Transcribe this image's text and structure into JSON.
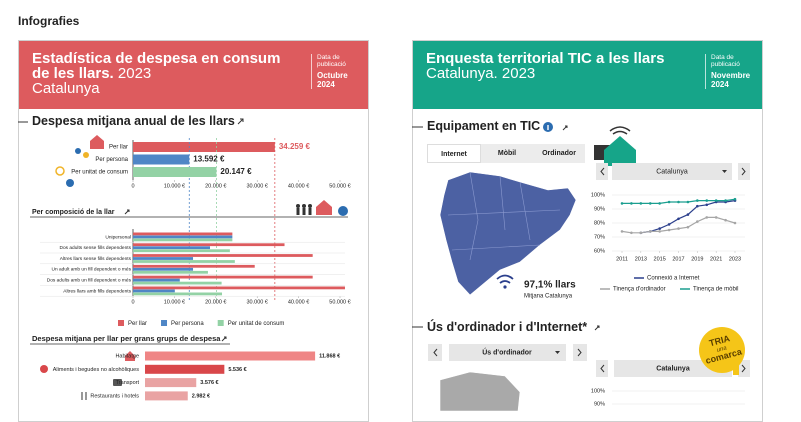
{
  "header": {
    "title": "Infografies"
  },
  "cards": [
    {
      "title": "Estadística de despesa en consum de les llars.",
      "year": "2023",
      "region": "Catalunya",
      "pub_label": "Data de publicació",
      "pub_date": "Octubre 2024",
      "section_title": "Despesa mitjana anual de les llars",
      "annual": {
        "type": "bar",
        "orientation": "horizontal",
        "categories": [
          "Per llar",
          "Per persona",
          "Per unitat de consum"
        ],
        "values": [
          34259,
          13592,
          20147
        ],
        "value_labels": [
          "34.259 €",
          "13.592 €",
          "20.147 €"
        ],
        "colors": [
          "#dd5b5e",
          "#4f86c6",
          "#93d2a5"
        ],
        "xlim": [
          0,
          50000
        ],
        "xticks": [
          0,
          {
            "value": 10000,
            "label": "10.000 €"
          },
          {
            "value": 20000,
            "label": "20.000 €"
          },
          {
            "value": 30000,
            "label": "30.000 €"
          },
          {
            "value": 40000,
            "label": "40.000 €"
          },
          {
            "value": 50000,
            "label": "50.000 €"
          }
        ]
      },
      "composition": {
        "type": "bar",
        "orientation": "horizontal",
        "title": "Per composició de la llar",
        "categories": [
          "Unipersonal",
          "Dos adults sense fills dependents",
          "Altres llars sense fills dependents",
          "Un adult amb un fill dependent o més",
          "Dos adults amb un fill dependent o més",
          "Altres llars amb fills dependents"
        ],
        "series": [
          {
            "name": "Per llar",
            "color": "#dd5b5e",
            "values": [
              24000,
              36600,
              43400,
              29400,
              43400,
              51200
            ]
          },
          {
            "name": "Per persona",
            "color": "#4f86c6",
            "values": [
              24000,
              18600,
              14500,
              14500,
              11300,
              10100
            ]
          },
          {
            "name": "Per unitat de consum",
            "color": "#93d2a5",
            "values": [
              24000,
              23400,
              24600,
              18100,
              21400,
              21500
            ]
          }
        ],
        "xlim": [
          0,
          50000
        ],
        "xticks": [
          0,
          {
            "value": 10000,
            "label": "10.000 €"
          },
          {
            "value": 20000,
            "label": "20.000 €"
          },
          {
            "value": 30000,
            "label": "30.000 €"
          },
          {
            "value": 40000,
            "label": "40.000 €"
          },
          {
            "value": 50000,
            "label": "50.000 €"
          }
        ]
      },
      "groups": {
        "type": "bar",
        "orientation": "horizontal",
        "title": "Despesa mitjana per llar per grans grups de despesa",
        "categories": [
          "Habitatge",
          "Aliments i begudes no alcohòliques",
          "Transport",
          "Restaurants i hotels"
        ],
        "values": [
          11868,
          5536,
          3576,
          2982
        ],
        "value_labels": [
          "11.868 €",
          "5.536 €",
          "3.576 €",
          "2.982 €"
        ],
        "colors": [
          "#ef8585",
          "#d9474a",
          "#e9a3a3",
          "#e9a3a3"
        ],
        "xlim": [
          0,
          12000
        ]
      }
    },
    {
      "title": "Enquesta territorial TIC a les llars",
      "subtitle": "Catalunya. 2023",
      "pub_label": "Data de publicació",
      "pub_date": "Novembre 2024",
      "section_title": "Equipament en TIC",
      "tabs": [
        "Internet",
        "Mòbil",
        "Ordinador"
      ],
      "map_value": "97,1% llars",
      "map_caption": "Mitjana Catalunya",
      "select": "Catalunya",
      "trend": {
        "type": "line",
        "x": [
          2011,
          2012,
          2013,
          2014,
          2015,
          2016,
          2017,
          2018,
          2019,
          2020,
          2021,
          2022,
          2023
        ],
        "xlim": [
          2011,
          2023
        ],
        "xticks": [
          2011,
          2013,
          2015,
          2017,
          2019,
          2021,
          2023
        ],
        "ylim": [
          60,
          100
        ],
        "yticks": [
          {
            "value": 60,
            "label": "60%"
          },
          {
            "value": 70,
            "label": "70%"
          },
          {
            "value": 80,
            "label": "80%"
          },
          {
            "value": 90,
            "label": "90%"
          },
          {
            "value": 100,
            "label": "100%"
          }
        ],
        "grid": true,
        "series": [
          {
            "name": "Connexió a Internet",
            "color": "#2b3f8c",
            "values": [
              null,
              null,
              73,
              74,
              76,
              79,
              83,
              86,
              92,
              93,
              95,
              95,
              96
            ]
          },
          {
            "name": "Tinença d'ordinador",
            "color": "#a6a6a6",
            "values": [
              74,
              73,
              73,
              74,
              74,
              75,
              76,
              77,
              81,
              84,
              84,
              82,
              80
            ]
          },
          {
            "name": "Tinença de mòbil",
            "color": "#1a9e8f",
            "values": [
              94,
              94,
              94,
              94,
              94,
              95,
              95,
              95,
              96,
              96,
              96,
              96,
              97
            ]
          }
        ]
      },
      "section2_title": "Ús d'ordinador i d'Internet*",
      "select2": "Ús d'ordinador",
      "badge": [
        "TRIA",
        "una",
        "comarca"
      ],
      "select3": "Catalunya",
      "usage_yticks": [
        {
          "value": 100,
          "label": "100%"
        },
        {
          "value": 90,
          "label": "90%"
        }
      ]
    }
  ]
}
